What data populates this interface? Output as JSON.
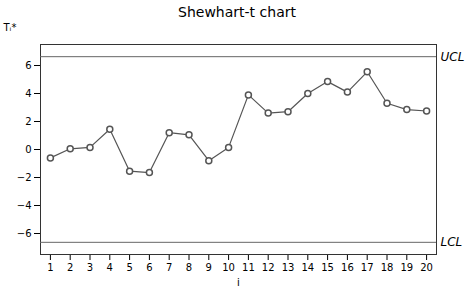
{
  "chart_data": {
    "type": "line",
    "title": "Shewhart-t chart",
    "x_label": "i",
    "y_label": "Tᵢ*",
    "x": [
      1,
      2,
      3,
      4,
      5,
      6,
      7,
      8,
      9,
      10,
      11,
      12,
      13,
      14,
      15,
      16,
      17,
      18,
      19,
      20
    ],
    "values": [
      -0.6,
      0.05,
      0.15,
      1.45,
      -1.55,
      -1.65,
      1.2,
      1.05,
      -0.8,
      0.15,
      3.9,
      2.6,
      2.7,
      4.0,
      4.85,
      4.1,
      5.55,
      3.3,
      2.85,
      2.75
    ],
    "color": "#555555",
    "marker": "circle",
    "line_style": "solid",
    "control_limits": [
      {
        "label": "UCL",
        "value": 6.63,
        "color": "#666666"
      },
      {
        "label": "LCL",
        "value": -6.63,
        "color": "#666666"
      }
    ],
    "xlim": [
      0.5,
      20.5
    ],
    "xticks": [
      1,
      2,
      3,
      4,
      5,
      6,
      7,
      8,
      9,
      10,
      11,
      12,
      13,
      14,
      15,
      16,
      17,
      18,
      19,
      20
    ],
    "ylim": [
      -7.5,
      7.5
    ],
    "yticks": [
      -6,
      -4,
      -2,
      0,
      2,
      4,
      6
    ],
    "grid": false
  }
}
